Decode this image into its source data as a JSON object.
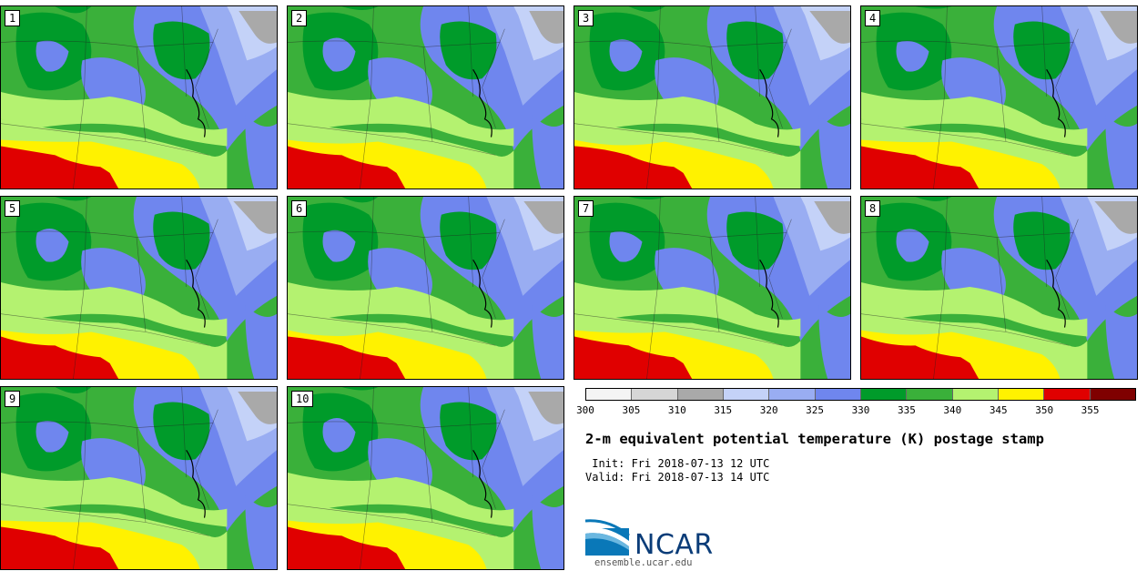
{
  "title": "2-m equivalent potential temperature (K) postage stamp",
  "init_label": " Init: Fri 2018-07-13 12 UTC",
  "valid_label": "Valid: Fri 2018-07-13 14 UTC",
  "logo": {
    "name": "NCAR",
    "url": "ensemble.ucar.edu"
  },
  "members": [
    "1",
    "2",
    "3",
    "4",
    "5",
    "6",
    "7",
    "8",
    "9",
    "10"
  ],
  "colorbar": {
    "ticks": [
      "300",
      "305",
      "310",
      "315",
      "320",
      "325",
      "330",
      "335",
      "340",
      "345",
      "350",
      "355"
    ],
    "colors": [
      "#f4f4f4",
      "#d6d6d6",
      "#a9a9a9",
      "#c4d2f8",
      "#99adf2",
      "#6f86ee",
      "#009b2a",
      "#3ab03a",
      "#b4f270",
      "#fff200",
      "#e00000",
      "#7f0000"
    ]
  }
}
